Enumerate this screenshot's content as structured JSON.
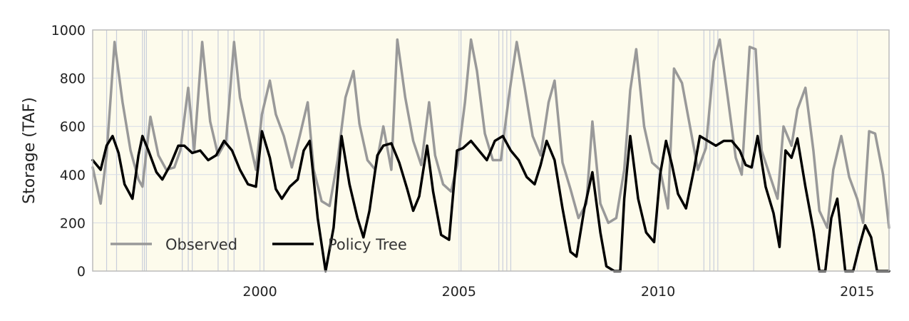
{
  "colors": {
    "observed": "#999999",
    "policy_tree": "#000000",
    "plot_background": "#fdfbec",
    "grid": "#d6dbe6",
    "frame": "#bbbbbb",
    "event_lines": "#c9cedb"
  },
  "chart_data": {
    "type": "line",
    "title": "",
    "xlabel": "",
    "ylabel": "Storage (TAF)",
    "xlim": [
      1995.8,
      2015.8
    ],
    "ylim": [
      0,
      1000
    ],
    "grid": true,
    "legend_position": "bottom-left",
    "x_ticks": [
      2000,
      2005,
      2010,
      2015
    ],
    "x_tick_labels": [
      "2000",
      "2005",
      "2010",
      "2015"
    ],
    "y_ticks": [
      0,
      200,
      400,
      600,
      800,
      1000
    ],
    "y_tick_labels": [
      "0",
      "200",
      "400",
      "600",
      "800",
      "1000"
    ],
    "event_years": [
      1996.15,
      1996.4,
      1997.05,
      1997.1,
      1997.15,
      1998.05,
      1998.2,
      1998.3,
      1998.95,
      1999.2,
      1999.35,
      2000.0,
      2000.1,
      2005.05,
      2006.0,
      2006.1,
      2006.2,
      2006.3,
      2011.15,
      2011.3,
      2011.4,
      2011.5,
      2012.4
    ],
    "series": [
      {
        "name": "Observed",
        "x": [
          1995.8,
          1996.0,
          1996.15,
          1996.35,
          1996.55,
          1996.75,
          1996.95,
          1997.05,
          1997.25,
          1997.45,
          1997.65,
          1997.85,
          1998.0,
          1998.2,
          1998.35,
          1998.55,
          1998.75,
          1998.95,
          1999.15,
          1999.35,
          1999.5,
          1999.7,
          1999.9,
          2000.05,
          2000.25,
          2000.4,
          2000.6,
          2000.8,
          2001.0,
          2001.2,
          2001.35,
          2001.55,
          2001.75,
          2001.95,
          2002.15,
          2002.35,
          2002.5,
          2002.7,
          2002.9,
          2003.1,
          2003.3,
          2003.45,
          2003.65,
          2003.85,
          2004.05,
          2004.25,
          2004.4,
          2004.6,
          2004.8,
          2004.95,
          2005.15,
          2005.3,
          2005.45,
          2005.65,
          2005.85,
          2006.05,
          2006.25,
          2006.45,
          2006.65,
          2006.85,
          2007.05,
          2007.25,
          2007.4,
          2007.6,
          2007.8,
          2008.0,
          2008.2,
          2008.35,
          2008.55,
          2008.75,
          2008.95,
          2009.15,
          2009.3,
          2009.45,
          2009.65,
          2009.85,
          2010.05,
          2010.25,
          2010.4,
          2010.6,
          2010.8,
          2011.0,
          2011.2,
          2011.4,
          2011.55,
          2011.75,
          2011.95,
          2012.1,
          2012.3,
          2012.45,
          2012.6,
          2012.8,
          2013.0,
          2013.15,
          2013.35,
          2013.5,
          2013.7,
          2013.9,
          2014.05,
          2014.25,
          2014.4,
          2014.6,
          2014.8,
          2015.0,
          2015.15,
          2015.3,
          2015.45,
          2015.65,
          2015.8
        ],
        "y": [
          430,
          280,
          480,
          950,
          700,
          500,
          380,
          350,
          640,
          480,
          420,
          430,
          500,
          760,
          500,
          950,
          620,
          480,
          540,
          950,
          720,
          570,
          420,
          650,
          790,
          650,
          560,
          430,
          560,
          700,
          420,
          290,
          270,
          460,
          720,
          830,
          610,
          460,
          420,
          600,
          420,
          960,
          720,
          540,
          440,
          700,
          480,
          360,
          330,
          440,
          700,
          960,
          830,
          570,
          460,
          460,
          720,
          950,
          760,
          560,
          480,
          700,
          790,
          450,
          340,
          220,
          280,
          620,
          280,
          200,
          220,
          420,
          750,
          920,
          600,
          450,
          420,
          260,
          840,
          780,
          600,
          420,
          510,
          870,
          960,
          720,
          470,
          400,
          930,
          920,
          500,
          400,
          300,
          600,
          520,
          670,
          760,
          500,
          250,
          180,
          420,
          560,
          390,
          300,
          200,
          580,
          570,
          400,
          180
        ]
      },
      {
        "name": "Policy Tree",
        "x": [
          1995.8,
          1996.0,
          1996.15,
          1996.3,
          1996.45,
          1996.6,
          1996.8,
          1996.95,
          1997.05,
          1997.2,
          1997.4,
          1997.55,
          1997.75,
          1997.95,
          1998.1,
          1998.3,
          1998.5,
          1998.7,
          1998.9,
          1999.1,
          1999.3,
          1999.5,
          1999.7,
          1999.9,
          2000.05,
          2000.25,
          2000.4,
          2000.55,
          2000.75,
          2000.95,
          2001.1,
          2001.25,
          2001.45,
          2001.65,
          2001.85,
          2002.05,
          2002.25,
          2002.45,
          2002.6,
          2002.75,
          2002.95,
          2003.1,
          2003.3,
          2003.5,
          2003.7,
          2003.85,
          2004.0,
          2004.2,
          2004.35,
          2004.55,
          2004.75,
          2004.95,
          2005.1,
          2005.3,
          2005.5,
          2005.7,
          2005.9,
          2006.1,
          2006.3,
          2006.5,
          2006.7,
          2006.9,
          2007.05,
          2007.2,
          2007.4,
          2007.6,
          2007.8,
          2007.95,
          2008.15,
          2008.35,
          2008.55,
          2008.7,
          2008.9,
          2009.05,
          2009.15,
          2009.3,
          2009.5,
          2009.7,
          2009.9,
          2010.05,
          2010.2,
          2010.35,
          2010.5,
          2010.7,
          2010.9,
          2011.05,
          2011.25,
          2011.45,
          2011.65,
          2011.85,
          2012.05,
          2012.2,
          2012.35,
          2012.5,
          2012.7,
          2012.9,
          2013.05,
          2013.2,
          2013.35,
          2013.5,
          2013.7,
          2013.9,
          2014.05,
          2014.2,
          2014.35,
          2014.5,
          2014.7,
          2014.9,
          2015.05,
          2015.2,
          2015.35,
          2015.5,
          2015.65,
          2015.8
        ],
        "y": [
          460,
          420,
          520,
          560,
          490,
          360,
          300,
          480,
          560,
          500,
          410,
          380,
          440,
          520,
          520,
          490,
          500,
          460,
          480,
          540,
          500,
          420,
          360,
          350,
          580,
          470,
          340,
          300,
          350,
          380,
          500,
          540,
          220,
          0,
          180,
          560,
          360,
          220,
          140,
          250,
          480,
          520,
          530,
          450,
          340,
          250,
          310,
          520,
          330,
          150,
          130,
          500,
          510,
          540,
          500,
          460,
          540,
          560,
          500,
          460,
          390,
          360,
          440,
          540,
          460,
          260,
          80,
          60,
          260,
          410,
          160,
          20,
          0,
          0,
          300,
          560,
          300,
          160,
          120,
          400,
          540,
          440,
          320,
          260,
          420,
          560,
          540,
          520,
          540,
          540,
          500,
          440,
          430,
          560,
          350,
          240,
          100,
          500,
          470,
          550,
          350,
          170,
          0,
          0,
          220,
          300,
          0,
          0,
          100,
          190,
          140,
          0,
          0,
          0
        ]
      }
    ]
  }
}
